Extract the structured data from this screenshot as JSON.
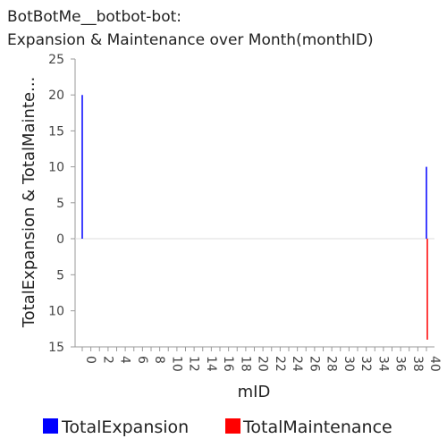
{
  "chart_data": {
    "type": "bar",
    "title": [
      "BotBotMe__botbot-bot:",
      "Expansion & Maintenance over Month(monthID)"
    ],
    "xlabel": "mID",
    "ylabel": "TotalExpansion & TotalMainte...",
    "x": [
      0,
      40
    ],
    "xlim": [
      0,
      40
    ],
    "x_ticks": [
      "0",
      "2",
      "4",
      "6",
      "8",
      "10",
      "12",
      "14",
      "16",
      "18",
      "20",
      "22",
      "24",
      "26",
      "28",
      "30",
      "32",
      "34",
      "36",
      "38",
      "40"
    ],
    "y_ticks_up": [
      "25",
      "20",
      "15",
      "10",
      "5",
      "0"
    ],
    "y_ticks_down": [
      "5",
      "10",
      "15"
    ],
    "ylim": [
      -15,
      25
    ],
    "series": [
      {
        "name": "TotalExpansion",
        "color": "#0000ff",
        "values": [
          20,
          10
        ]
      },
      {
        "name": "TotalMaintenance",
        "color": "#ff0000",
        "values": [
          0,
          14
        ]
      }
    ],
    "grid": false,
    "legend": "bottom"
  }
}
